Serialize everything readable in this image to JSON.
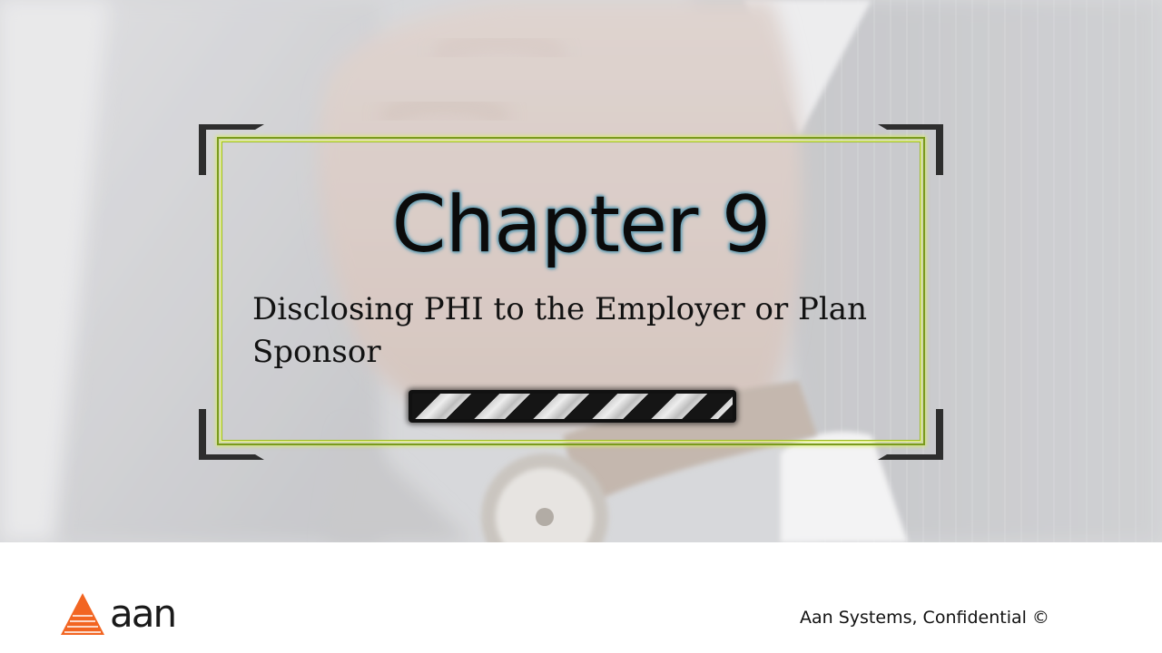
{
  "slide": {
    "title": "Chapter 9",
    "subtitle": "Disclosing PHI to the Employer or Plan Sponsor"
  },
  "footer": {
    "logo_text": "aan",
    "confidential_text": "Aan Systems, Confidential ©"
  },
  "colors": {
    "accent_orange": "#f26522",
    "frame_green": "#c8e84a",
    "title_glow": "#6ea4b8"
  },
  "icons": {
    "logo_mark": "triangle-logo-icon"
  }
}
